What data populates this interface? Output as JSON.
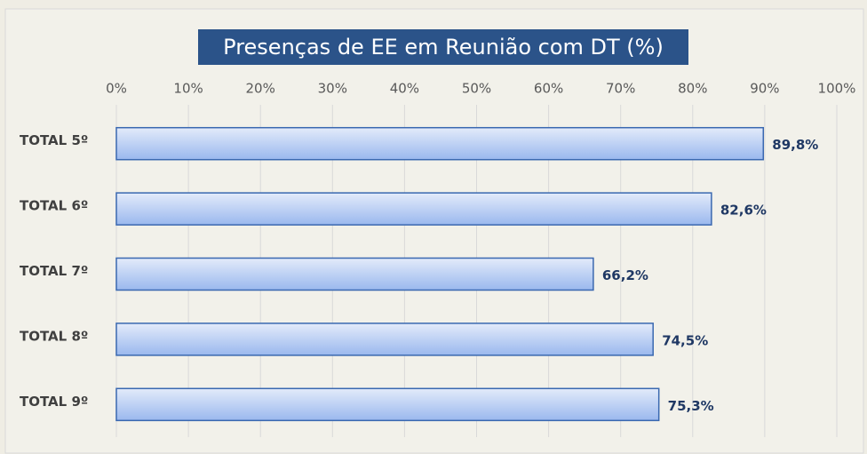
{
  "chart_data": {
    "type": "bar",
    "orientation": "horizontal",
    "title": "Presenças de EE em Reunião com DT (%)",
    "categories": [
      "TOTAL 5º",
      "TOTAL 6º",
      "TOTAL 7º",
      "TOTAL 8º",
      "TOTAL 9º"
    ],
    "values": [
      89.8,
      82.6,
      66.2,
      74.5,
      75.3
    ],
    "value_labels": [
      "89,8%",
      "82,6%",
      "66,2%",
      "74,5%",
      "75,3%"
    ],
    "color": "#9ab8ee",
    "xlim": [
      0,
      100
    ],
    "xticks": [
      {
        "value": 0,
        "label": "0%"
      },
      {
        "value": 10,
        "label": "10%"
      },
      {
        "value": 20,
        "label": "20%"
      },
      {
        "value": 30,
        "label": "30%"
      },
      {
        "value": 40,
        "label": "40%"
      },
      {
        "value": 50,
        "label": "50%"
      },
      {
        "value": 60,
        "label": "60%"
      },
      {
        "value": 70,
        "label": "70%"
      },
      {
        "value": 80,
        "label": "80%"
      },
      {
        "value": 90,
        "label": "90%"
      },
      {
        "value": 100,
        "label": "100%"
      }
    ],
    "grid": true
  }
}
